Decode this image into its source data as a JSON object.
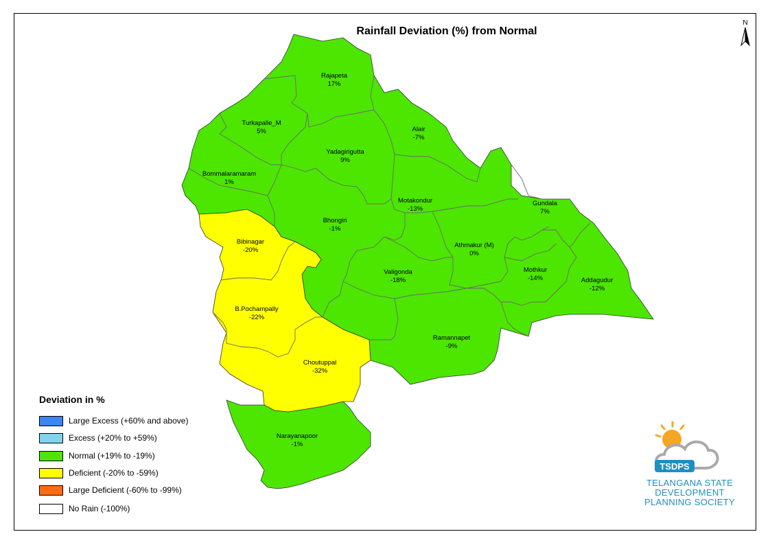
{
  "title": "Rainfall Deviation (%) from Normal",
  "north_label": "N",
  "colors": {
    "normal": "#4ce600",
    "deficient": "#ffff00",
    "large_excess": "#3d85f0",
    "excess": "#7fd4ee",
    "large_deficient": "#ff6a13",
    "no_rain": "#ffffff",
    "boundary": "#6a6a6a"
  },
  "mandals": [
    {
      "name": "Rajapeta",
      "value": "17%",
      "category": "normal"
    },
    {
      "name": "Turkapalle_M",
      "value": "5%",
      "category": "normal"
    },
    {
      "name": "Alair",
      "value": "-7%",
      "category": "normal"
    },
    {
      "name": "Yadagirigutta",
      "value": "9%",
      "category": "normal"
    },
    {
      "name": "Bommalaramaram",
      "value": "1%",
      "category": "normal"
    },
    {
      "name": "Motakondur",
      "value": "-13%",
      "category": "normal"
    },
    {
      "name": "Gundala",
      "value": "7%",
      "category": "normal"
    },
    {
      "name": "Bhongiri",
      "value": "-1%",
      "category": "normal"
    },
    {
      "name": "Bibinagar",
      "value": "-20%",
      "category": "deficient"
    },
    {
      "name": "Athmakur (M)",
      "value": "0%",
      "category": "normal"
    },
    {
      "name": "Valigonda",
      "value": "-18%",
      "category": "normal"
    },
    {
      "name": "Mothkur",
      "value": "-14%",
      "category": "normal"
    },
    {
      "name": "Addagudur",
      "value": "-12%",
      "category": "normal"
    },
    {
      "name": "B.Pochampally",
      "value": "-22%",
      "category": "deficient"
    },
    {
      "name": "Ramannapet",
      "value": "-9%",
      "category": "normal"
    },
    {
      "name": "Choutuppal",
      "value": "-32%",
      "category": "deficient"
    },
    {
      "name": "Narayanapoor",
      "value": "-1%",
      "category": "normal"
    }
  ],
  "legend": {
    "title": "Deviation in %",
    "items": [
      {
        "label": "Large Excess (+60% and above)",
        "color": "#3d85f0"
      },
      {
        "label": "Excess (+20% to +59%)",
        "color": "#7fd4ee"
      },
      {
        "label": "Normal (+19% to -19%)",
        "color": "#4ce600"
      },
      {
        "label": "Deficient (-20% to -59%)",
        "color": "#ffff00"
      },
      {
        "label": "Large Deficient (-60% to -99%)",
        "color": "#ff6a13"
      },
      {
        "label": "No Rain (-100%)",
        "color": "#ffffff"
      }
    ]
  },
  "logo": {
    "acronym": "TSDPS",
    "line1": "TELANGANA STATE",
    "line2": "DEVELOPMENT",
    "line3": "PLANNING SOCIETY"
  }
}
